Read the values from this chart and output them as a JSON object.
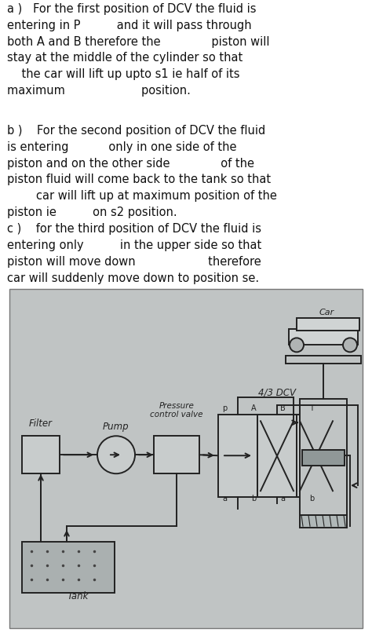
{
  "bg_color": "#ffffff",
  "diagram_bg": "#b8bcbc",
  "line_color": "#222222",
  "text_color": "#111111",
  "para_a": "a )   For the first position of DCV the fluid is\nentering in P          and it will pass through\nboth A and B therefore the              piston will\nstay at the middle of the cylinder so that\n    the car will lift up upto s1 ie half of its\nmaximum                     position.",
  "para_b": "b )    For the second position of DCV the fluid\nis entering           only in one side of the\npiston and on the other side              of the\npiston fluid will come back to the tank so that\n        car will lift up at maximum position of the\npiston ie          on s2 position.",
  "para_c": "c )    for the third position of DCV the fluid is\nentering only          in the upper side so that\npiston will move down                    therefore\ncar will suddenly move down to position se.",
  "font_size": 10.5
}
